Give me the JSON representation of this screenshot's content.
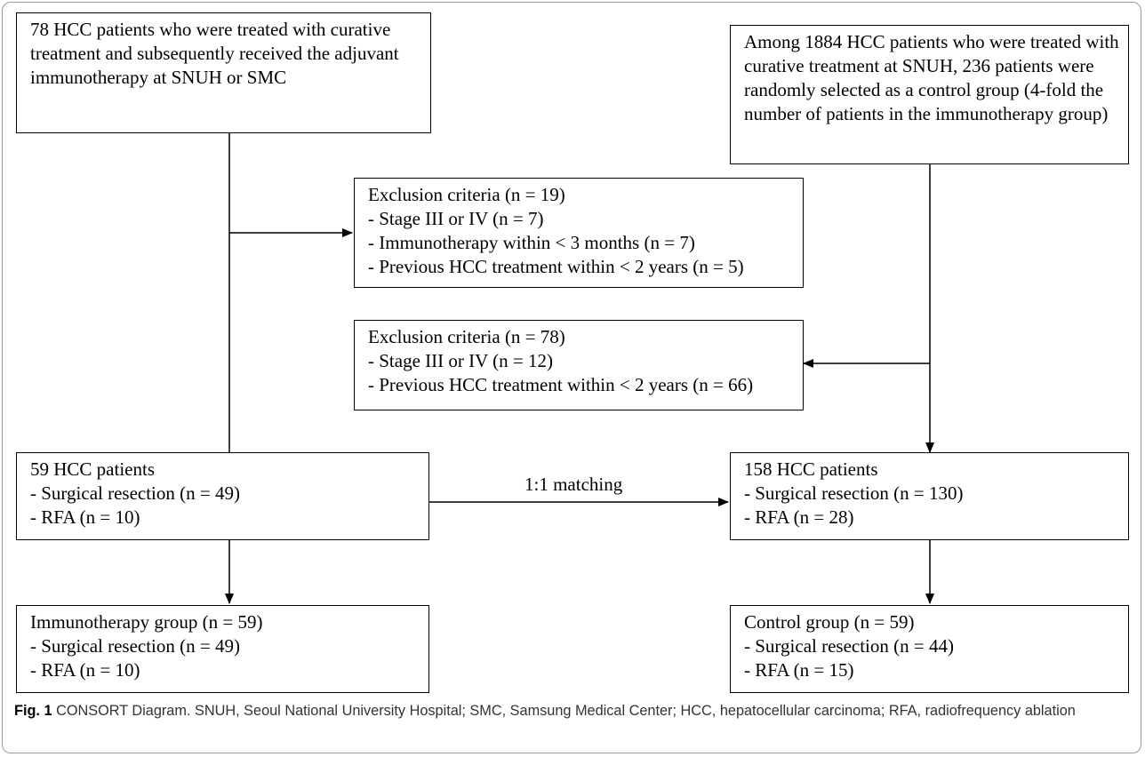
{
  "boxes": {
    "immuno_source": {
      "text": "78 HCC patients who were treated with curative treatment and subsequently received the adjuvant  immunotherapy at SNUH or SMC"
    },
    "control_source": {
      "text": "Among 1884 HCC patients who were treated with curative treatment at SNUH, 236 patients were randomly selected as a control group (4-fold the number of patients in the immunotherapy group)"
    },
    "exclusion_immuno": {
      "lines": [
        "Exclusion criteria (n = 19)",
        "- Stage III or IV (n = 7)",
        "- Immunotherapy within < 3 months (n = 7)",
        "- Previous HCC treatment within < 2 years (n = 5)"
      ]
    },
    "exclusion_control": {
      "lines": [
        "Exclusion criteria (n = 78)",
        "- Stage III or IV (n = 12)",
        "- Previous HCC treatment within < 2 years (n = 66)"
      ]
    },
    "immuno_eligible": {
      "lines": [
        "59 HCC patients",
        "- Surgical resection (n = 49)",
        "- RFA (n = 10)"
      ]
    },
    "control_eligible": {
      "lines": [
        "158 HCC patients",
        "- Surgical resection (n = 130)",
        "- RFA (n = 28)"
      ]
    },
    "immuno_group": {
      "lines": [
        "Immunotherapy group (n = 59)",
        "- Surgical resection (n = 49)",
        "- RFA (n = 10)"
      ]
    },
    "control_group": {
      "lines": [
        "Control group (n = 59)",
        "- Surgical resection (n = 44)",
        "- RFA (n = 15)"
      ]
    }
  },
  "matching_label": "1:1 matching",
  "caption": {
    "label": "Fig. 1",
    "text": "CONSORT Diagram. SNUH, Seoul National University Hospital; SMC, Samsung Medical Center; HCC, hepatocellular carcinoma; RFA, radiofrequency ablation"
  }
}
